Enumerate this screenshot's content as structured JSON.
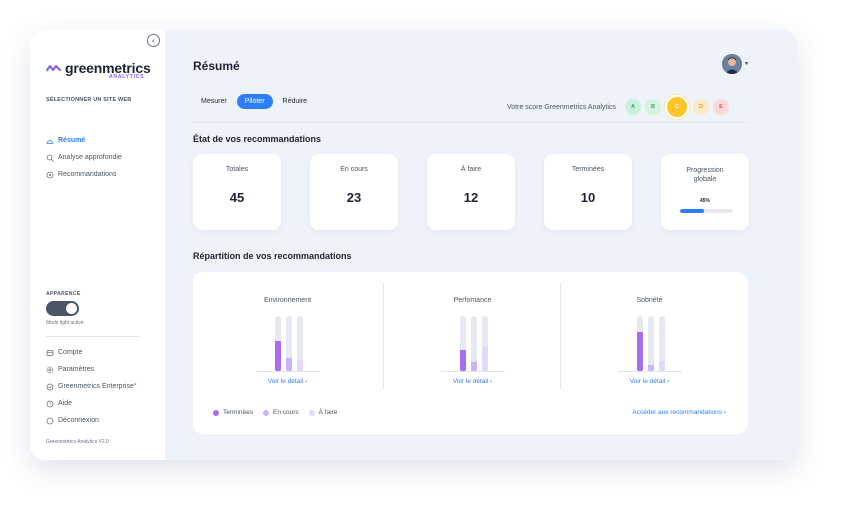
{
  "sidebar": {
    "collapse_icon": "chevron-left-icon",
    "logo_text": "greenmetrics",
    "logo_sub": "ANALYTICS",
    "site_select": "SÉLECTIONNER UN SITE WEB",
    "nav": [
      {
        "label": "Résumé",
        "icon": "chart-icon",
        "active": true
      },
      {
        "label": "Analyse approfondie",
        "icon": "magnifier-icon",
        "active": false
      },
      {
        "label": "Recommandations",
        "icon": "bulb-icon",
        "active": false
      }
    ],
    "appearance_label": "APPARENCE",
    "mode_text": "Mode light activé",
    "bottom_nav": [
      {
        "label": "Compte",
        "icon": "card-icon"
      },
      {
        "label": "Paramètres",
        "icon": "gear-icon"
      },
      {
        "label": "Greenmetrics Enterprise°",
        "icon": "enterprise-icon"
      },
      {
        "label": "Aide",
        "icon": "help-icon"
      },
      {
        "label": "Déconnexion",
        "icon": "logout-icon"
      }
    ],
    "version": "Greenmetrics Analytics V2.0"
  },
  "header": {
    "title": "Résumé",
    "tabs": [
      {
        "label": "Mesurer",
        "active": false
      },
      {
        "label": "Piloter",
        "active": true
      },
      {
        "label": "Réduire",
        "active": false
      }
    ],
    "score_label": "Votre score Greenmetrics Analytics",
    "scores": [
      {
        "letter": "A",
        "color": "#c9f0dd",
        "text": "#2f9e68"
      },
      {
        "letter": "B",
        "color": "#d5f1e0",
        "text": "#3aa56d"
      },
      {
        "letter": "C",
        "color": "#ffc629",
        "text": "#ffffff",
        "selected": true
      },
      {
        "letter": "D",
        "color": "#fde8c8",
        "text": "#e09a2d"
      },
      {
        "letter": "E",
        "color": "#fbd9d9",
        "text": "#e05252"
      }
    ]
  },
  "etat": {
    "title": "État de vos recommandations",
    "cards": [
      {
        "label": "Totales",
        "value": "45"
      },
      {
        "label": "En cours",
        "value": "23"
      },
      {
        "label": "À faire",
        "value": "12"
      },
      {
        "label": "Terminées",
        "value": "10"
      }
    ],
    "progress": {
      "label_line1": "Progression",
      "label_line2": "globale",
      "pct_text": "45%",
      "value": 0.45
    }
  },
  "repartition": {
    "title": "Répartition de vos recommandations",
    "columns": [
      {
        "title": "Environnement",
        "link": "Voir le détail",
        "values": [
          0.55,
          0.25,
          0.22
        ]
      },
      {
        "title": "Perfomance",
        "link": "Voir le détail",
        "values": [
          0.4,
          0.18,
          0.45
        ]
      },
      {
        "title": "Sobriété",
        "link": "Voir le détail",
        "values": [
          0.72,
          0.12,
          0.2
        ]
      }
    ],
    "legend": [
      {
        "label": "Terminées",
        "color": "#a86df0"
      },
      {
        "label": "En cours",
        "color": "#cbb3f7"
      },
      {
        "label": "À faire",
        "color": "#e3d7fb"
      }
    ],
    "access_link": "Accéder aux recommandations"
  }
}
